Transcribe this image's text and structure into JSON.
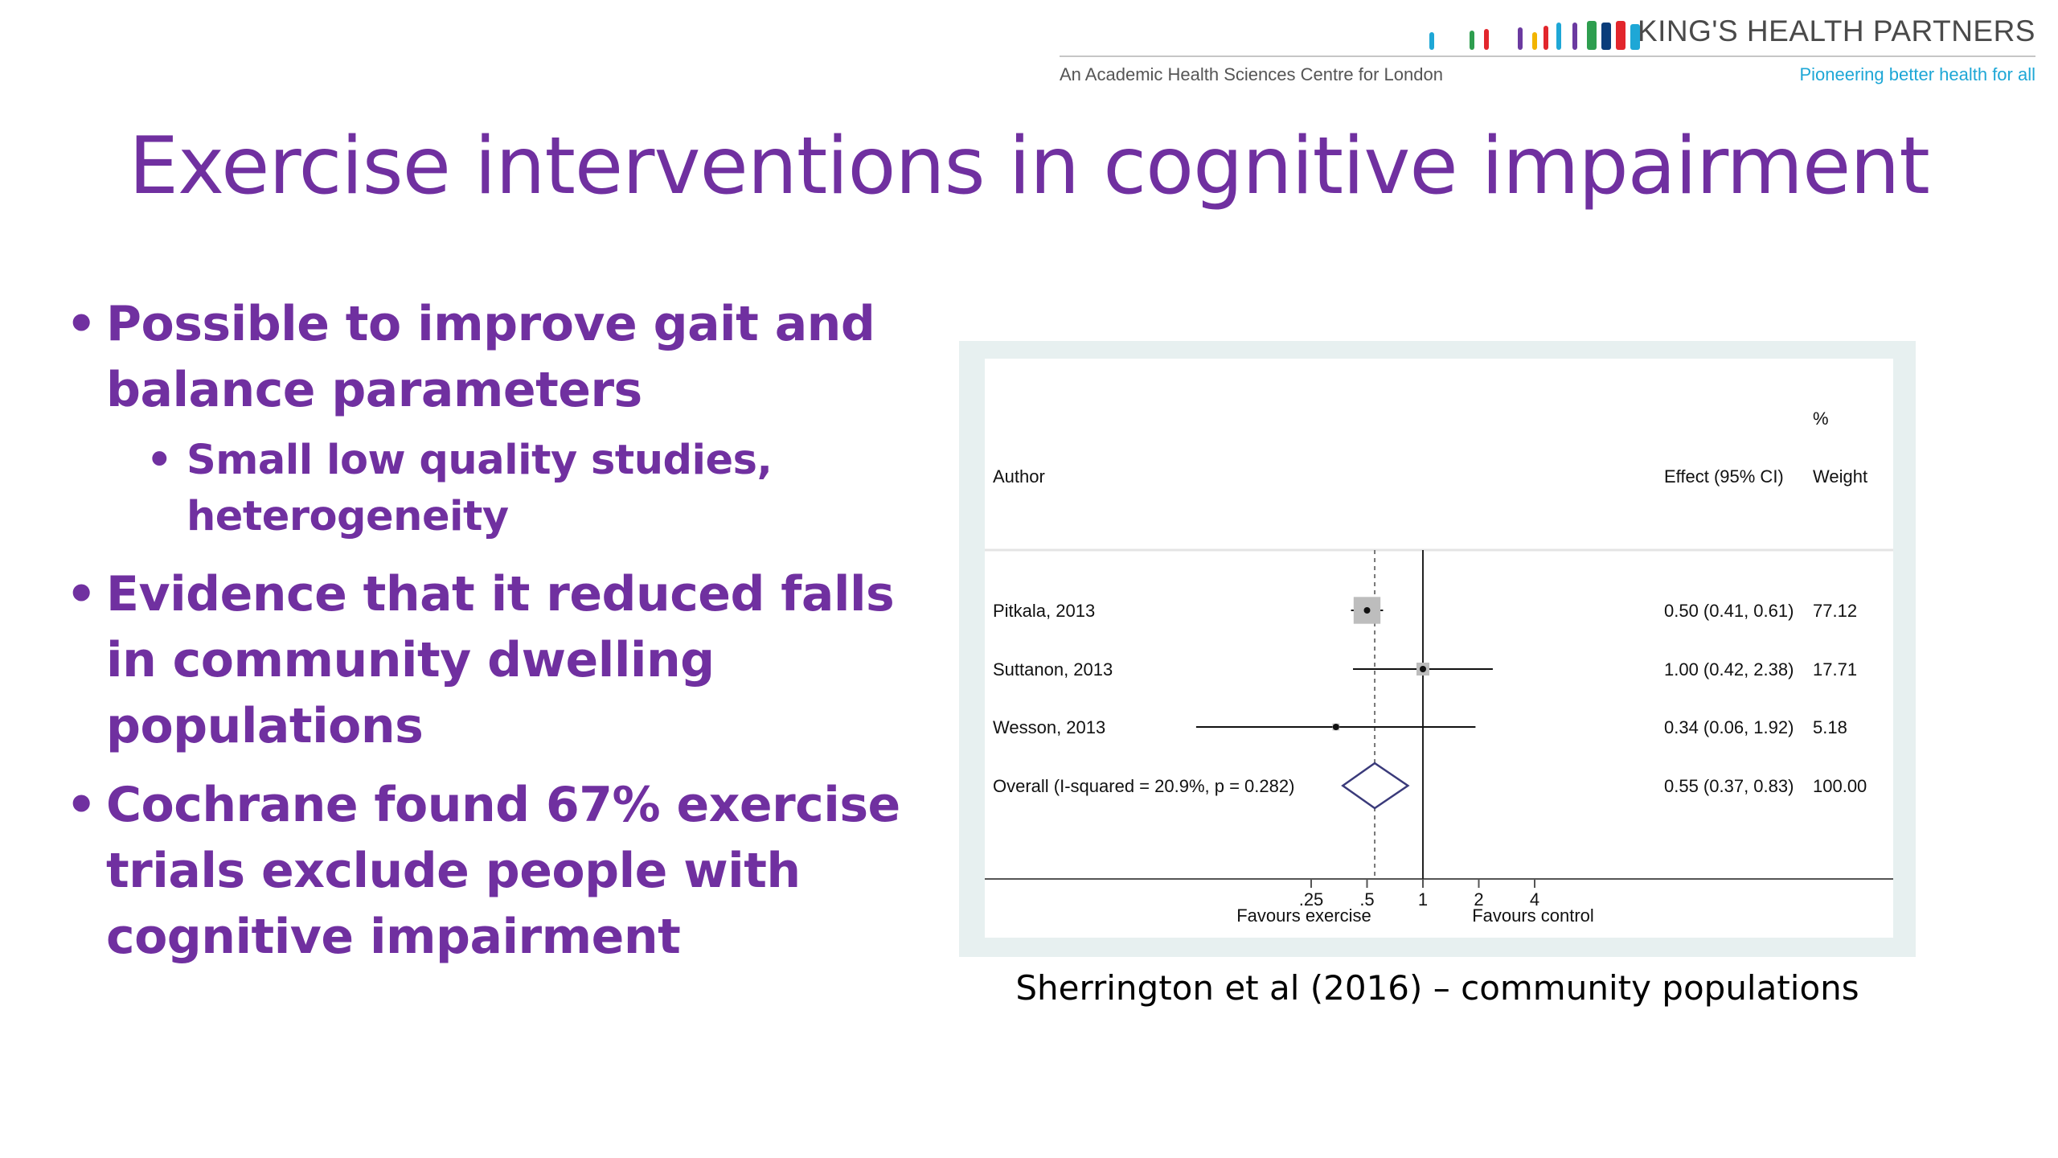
{
  "header": {
    "brand_name": "KING'S HEALTH PARTNERS",
    "tagline": "An Academic Health Sciences Centre for London",
    "slogan": "Pioneering better health for all",
    "logo_colors": [
      "#1ea7d6",
      "#2e9e4f",
      "#e2262c",
      "#6b3aa0",
      "#f2b400",
      "#e2262c",
      "#1ea7d6",
      "#6b3aa0",
      "#2e9e4f",
      "#0a3d7a",
      "#e2262c",
      "#1ea7d6"
    ]
  },
  "slide": {
    "title": "Exercise interventions in cognitive impairment",
    "bullets": [
      {
        "text": "Possible to improve gait and balance parameters",
        "sub": [
          "Small low quality studies, heterogeneity"
        ]
      },
      {
        "text": "Evidence that it reduced falls in community dwelling populations",
        "sub": []
      },
      {
        "text": "Cochrane found 67% exercise trials exclude people with cognitive impairment",
        "sub": []
      }
    ],
    "caption": "Sherrington et al (2016) – community populations"
  },
  "chart_data": {
    "type": "forest",
    "scale": "log",
    "header": {
      "author": "Author",
      "effect": "Effect (95% CI)",
      "weight_pct": "%",
      "weight": "Weight"
    },
    "studies": [
      {
        "author": "Pitkala, 2013",
        "effect": 0.5,
        "lower": 0.41,
        "upper": 0.61,
        "effect_label": "0.50 (0.41, 0.61)",
        "weight": "77.12"
      },
      {
        "author": "Suttanon, 2013",
        "effect": 1.0,
        "lower": 0.42,
        "upper": 2.38,
        "effect_label": "1.00 (0.42, 2.38)",
        "weight": "17.71"
      },
      {
        "author": "Wesson, 2013",
        "effect": 0.34,
        "lower": 0.06,
        "upper": 1.92,
        "effect_label": "0.34 (0.06, 1.92)",
        "weight": "5.18"
      }
    ],
    "overall": {
      "label": "Overall  (I-squared = 20.9%, p = 0.282)",
      "effect": 0.55,
      "lower": 0.37,
      "upper": 0.83,
      "effect_label": "0.55 (0.37, 0.83)",
      "weight": "100.00"
    },
    "x_ticks": [
      {
        "value": 0.25,
        "label": ".25"
      },
      {
        "value": 0.5,
        "label": ".5"
      },
      {
        "value": 1,
        "label": "1"
      },
      {
        "value": 2,
        "label": "2"
      },
      {
        "value": 4,
        "label": "4"
      }
    ],
    "xlabel_left": "Favours exercise",
    "xlabel_right": "Favours control",
    "null_line": 1
  }
}
